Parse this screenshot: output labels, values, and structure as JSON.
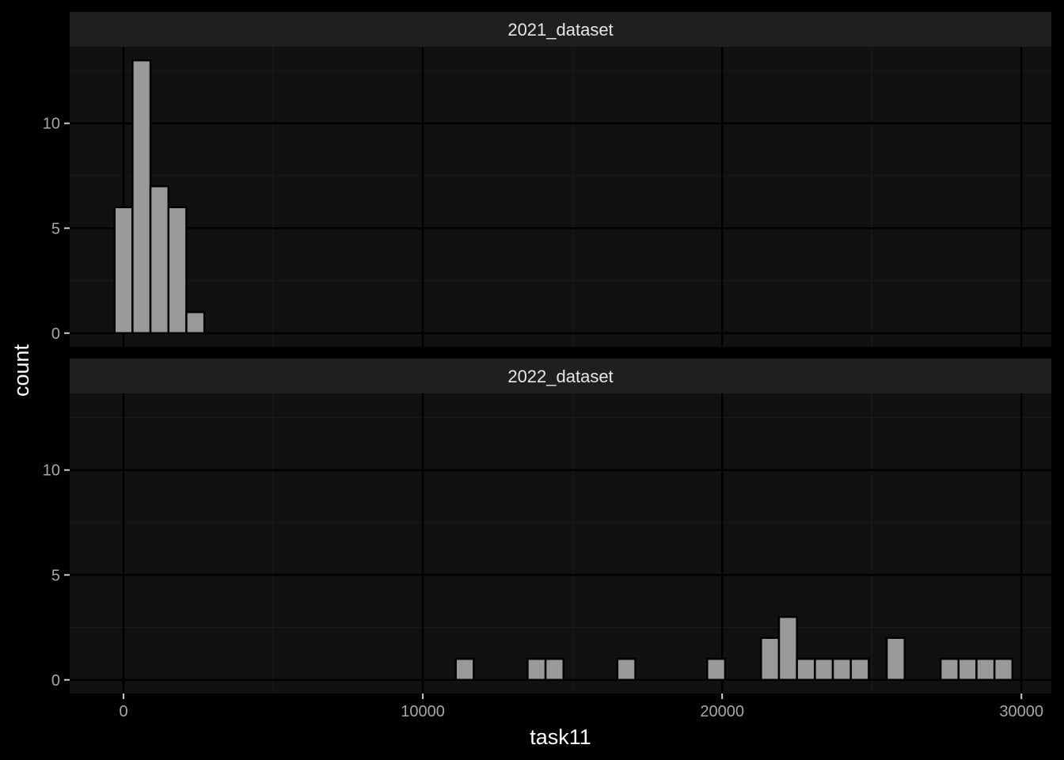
{
  "chart_data": {
    "type": "bar",
    "subtype": "faceted-histogram",
    "xlabel": "task11",
    "ylabel": "count",
    "xlim": [
      -1800,
      31000
    ],
    "ylim": [
      -0.65,
      13.65
    ],
    "x_ticks": [
      0,
      10000,
      20000,
      30000
    ],
    "x_tick_labels": [
      "0",
      "10000",
      "20000",
      "30000"
    ],
    "y_ticks": [
      0,
      5,
      10
    ],
    "y_tick_labels": [
      "0",
      "5",
      "10"
    ],
    "x_minor_ticks": [
      5000,
      15000,
      25000
    ],
    "y_minor_ticks": [
      2.5,
      7.5,
      12.5
    ],
    "bin_width": 600,
    "facets": [
      {
        "label": "2021_dataset",
        "bins": [
          {
            "x": 0,
            "count": 6
          },
          {
            "x": 600,
            "count": 13
          },
          {
            "x": 1200,
            "count": 7
          },
          {
            "x": 1800,
            "count": 6
          },
          {
            "x": 2400,
            "count": 1
          }
        ]
      },
      {
        "label": "2022_dataset",
        "bins": [
          {
            "x": 11400,
            "count": 1
          },
          {
            "x": 13800,
            "count": 1
          },
          {
            "x": 14400,
            "count": 1
          },
          {
            "x": 16800,
            "count": 1
          },
          {
            "x": 19800,
            "count": 1
          },
          {
            "x": 21600,
            "count": 2
          },
          {
            "x": 22200,
            "count": 3
          },
          {
            "x": 22800,
            "count": 1
          },
          {
            "x": 23400,
            "count": 1
          },
          {
            "x": 24000,
            "count": 1
          },
          {
            "x": 24600,
            "count": 1
          },
          {
            "x": 25800,
            "count": 2
          },
          {
            "x": 27600,
            "count": 1
          },
          {
            "x": 28200,
            "count": 1
          },
          {
            "x": 28800,
            "count": 1
          },
          {
            "x": 29400,
            "count": 1
          }
        ]
      }
    ],
    "colors": {
      "background": "#000000",
      "panel": "#111111",
      "strip": "#1f1f1f",
      "grid_major": "#000000",
      "grid_minor": "#1a1a1a",
      "bar_fill": "#999999",
      "bar_stroke": "#000000"
    }
  }
}
